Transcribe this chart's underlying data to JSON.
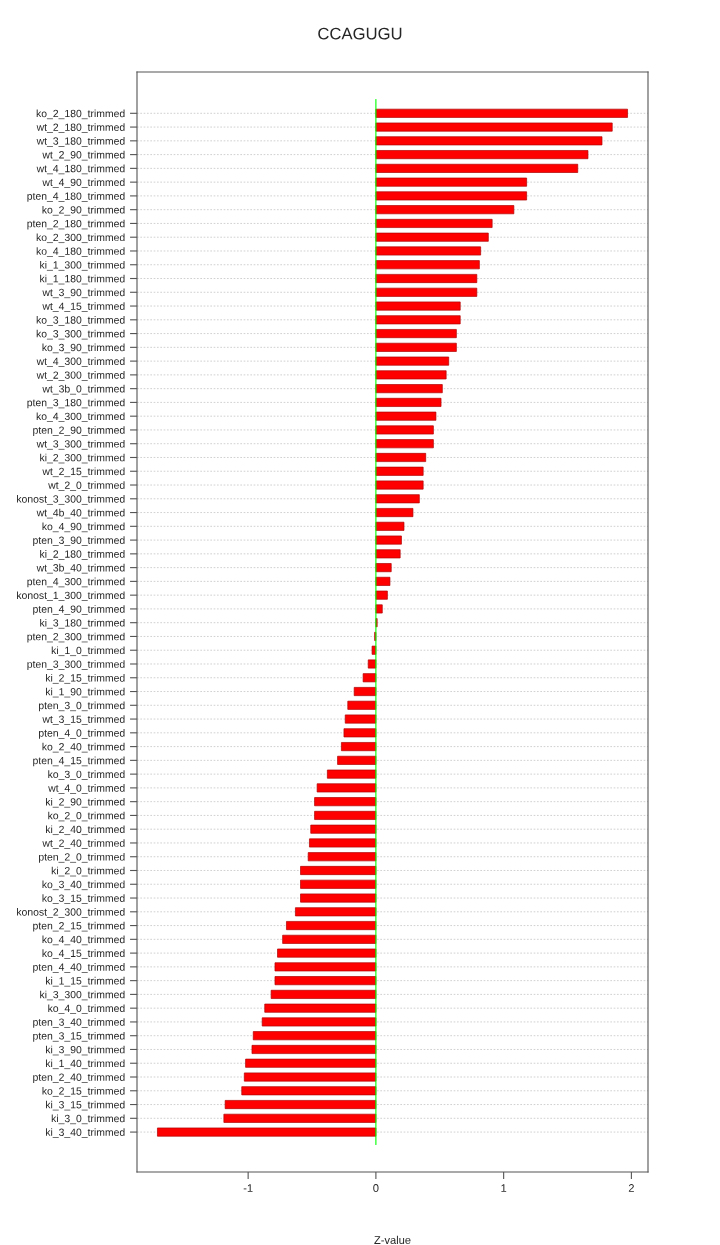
{
  "chart_data": {
    "type": "bar",
    "orientation": "horizontal",
    "title": "CCAGUGU",
    "xlabel": "Z-value",
    "categories": [
      "ko_2_180_trimmed",
      "wt_2_180_trimmed",
      "wt_3_180_trimmed",
      "wt_2_90_trimmed",
      "wt_4_180_trimmed",
      "wt_4_90_trimmed",
      "pten_4_180_trimmed",
      "ko_2_90_trimmed",
      "pten_2_180_trimmed",
      "ko_2_300_trimmed",
      "ko_4_180_trimmed",
      "ki_1_300_trimmed",
      "ki_1_180_trimmed",
      "wt_3_90_trimmed",
      "wt_4_15_trimmed",
      "ko_3_180_trimmed",
      "ko_3_300_trimmed",
      "ko_3_90_trimmed",
      "wt_4_300_trimmed",
      "wt_2_300_trimmed",
      "wt_3b_0_trimmed",
      "pten_3_180_trimmed",
      "ko_4_300_trimmed",
      "pten_2_90_trimmed",
      "wt_3_300_trimmed",
      "ki_2_300_trimmed",
      "wt_2_15_trimmed",
      "wt_2_0_trimmed",
      "konost_3_300_trimmed",
      "wt_4b_40_trimmed",
      "ko_4_90_trimmed",
      "pten_3_90_trimmed",
      "ki_2_180_trimmed",
      "wt_3b_40_trimmed",
      "pten_4_300_trimmed",
      "konost_1_300_trimmed",
      "pten_4_90_trimmed",
      "ki_3_180_trimmed",
      "pten_2_300_trimmed",
      "ki_1_0_trimmed",
      "pten_3_300_trimmed",
      "ki_2_15_trimmed",
      "ki_1_90_trimmed",
      "pten_3_0_trimmed",
      "wt_3_15_trimmed",
      "pten_4_0_trimmed",
      "ko_2_40_trimmed",
      "pten_4_15_trimmed",
      "ko_3_0_trimmed",
      "wt_4_0_trimmed",
      "ki_2_90_trimmed",
      "ko_2_0_trimmed",
      "ki_2_40_trimmed",
      "wt_2_40_trimmed",
      "pten_2_0_trimmed",
      "ki_2_0_trimmed",
      "ko_3_40_trimmed",
      "ko_3_15_trimmed",
      "konost_2_300_trimmed",
      "pten_2_15_trimmed",
      "ko_4_40_trimmed",
      "ko_4_15_trimmed",
      "pten_4_40_trimmed",
      "ki_1_15_trimmed",
      "ki_3_300_trimmed",
      "ko_4_0_trimmed",
      "pten_3_40_trimmed",
      "pten_3_15_trimmed",
      "ki_3_90_trimmed",
      "ki_1_40_trimmed",
      "pten_2_40_trimmed",
      "ko_2_15_trimmed",
      "ki_3_15_trimmed",
      "ki_3_0_trimmed",
      "ki_3_40_trimmed"
    ],
    "values": [
      1.97,
      1.85,
      1.77,
      1.66,
      1.58,
      1.18,
      1.18,
      1.08,
      0.91,
      0.88,
      0.82,
      0.81,
      0.79,
      0.79,
      0.66,
      0.66,
      0.63,
      0.63,
      0.57,
      0.55,
      0.52,
      0.51,
      0.47,
      0.45,
      0.45,
      0.39,
      0.37,
      0.37,
      0.34,
      0.29,
      0.22,
      0.2,
      0.19,
      0.12,
      0.11,
      0.09,
      0.05,
      0.01,
      -0.01,
      -0.03,
      -0.06,
      -0.1,
      -0.17,
      -0.22,
      -0.24,
      -0.25,
      -0.27,
      -0.3,
      -0.38,
      -0.46,
      -0.48,
      -0.48,
      -0.51,
      -0.52,
      -0.53,
      -0.59,
      -0.59,
      -0.59,
      -0.63,
      -0.7,
      -0.73,
      -0.77,
      -0.79,
      -0.79,
      -0.82,
      -0.87,
      -0.89,
      -0.96,
      -0.97,
      -1.02,
      -1.03,
      -1.05,
      -1.18,
      -1.19,
      -1.71
    ],
    "color": "#ff0000",
    "xlim": [
      -1.87,
      2.13
    ],
    "xticks": [
      -1,
      0,
      1,
      2
    ],
    "grid": "y",
    "ref_lines": [
      {
        "axis": "x",
        "value": 0,
        "color": "#00ff00"
      }
    ]
  }
}
